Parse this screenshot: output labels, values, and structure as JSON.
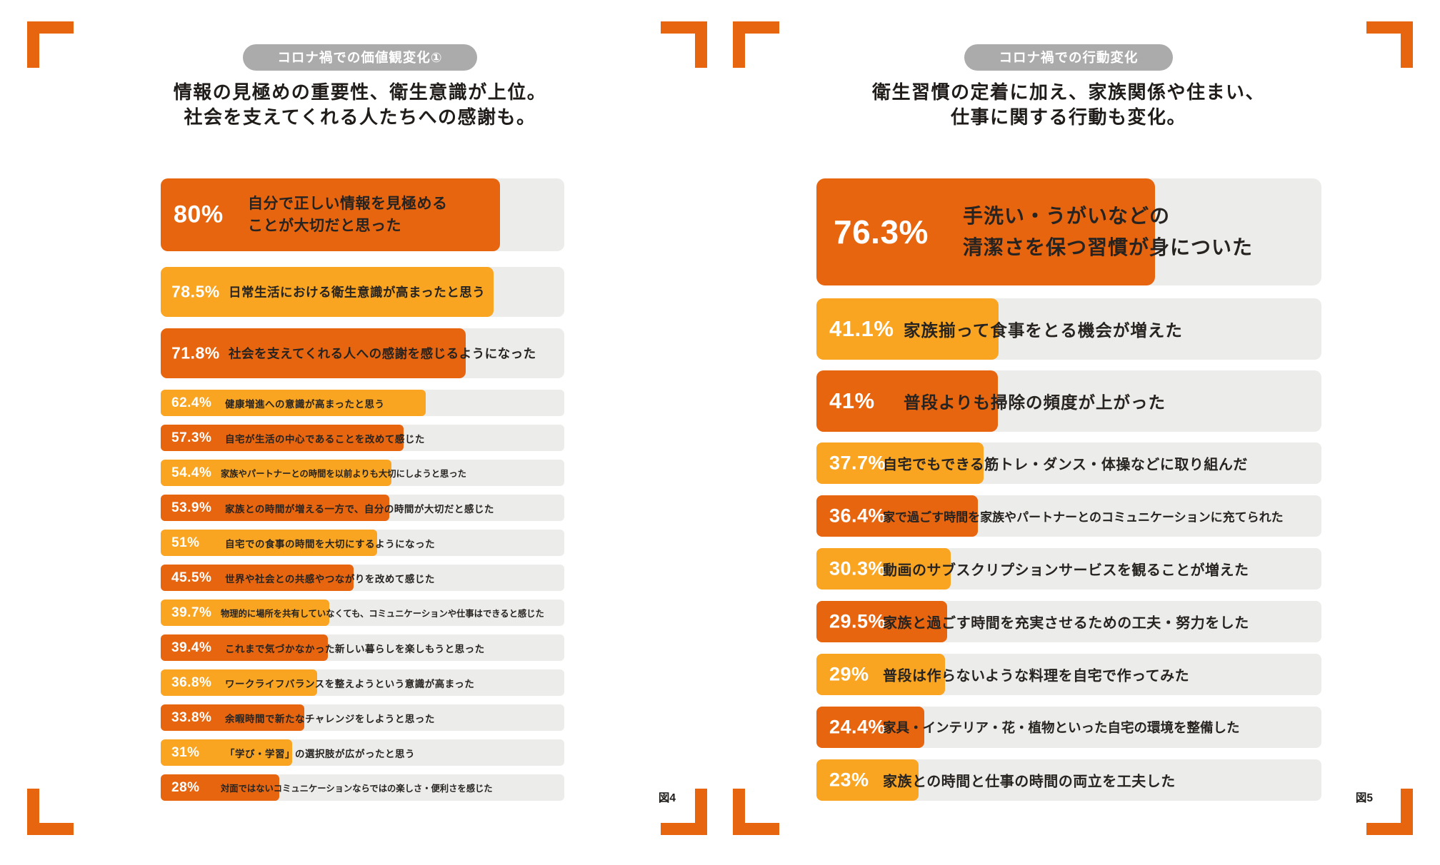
{
  "colors": {
    "dark_orange": "#E7650F",
    "amber": "#F9A522",
    "track_gray": "#ECECEA",
    "badge_gray": "#ABABAB",
    "text_dark": "#1F1C1A",
    "percent_text": "#FFFFFF"
  },
  "chart_data": [
    {
      "type": "bar",
      "orientation": "horizontal",
      "badge": "コロナ禍での価値観変化①",
      "title_lines": [
        "情報の見極めの重要性、衛生意識が上位。",
        "社会を支えてくれる人たちへの感謝も。"
      ],
      "figure_label": "図4",
      "unit": "%",
      "xlim": [
        0,
        100
      ],
      "grid": false,
      "legend": "none",
      "categories": [
        "自分で正しい情報を見極めることが大切だと思った",
        "日常生活における衛生意識が高まったと思う",
        "社会を支えてくれる人への感謝を感じるようになった",
        "健康増進への意識が高まったと思う",
        "自宅が生活の中心であることを改めて感じた",
        "家族やパートナーとの時間を以前よりも大切にしようと思った",
        "家族との時間が増える一方で、自分の時間が大切だと感じた",
        "自宅での食事の時間を大切にするようになった",
        "世界や社会との共感やつながりを改めて感じた",
        "物理的に場所を共有していなくても、コミュニケーションや仕事はできると感じた",
        "これまで気づかなかった新しい暮らしを楽しもうと思った",
        "ワークライフバランスを整えようという意識が高まった",
        "余暇時間で新たなチャレンジをしようと思った",
        "「学び・学習」の選択肢が広がったと思う",
        "対面ではないコミュニケーションならではの楽しさ・便利さを感じた"
      ],
      "values": [
        80,
        78.5,
        71.8,
        62.4,
        57.3,
        54.4,
        53.9,
        51,
        45.5,
        39.7,
        39.4,
        36.8,
        33.8,
        31,
        28
      ],
      "bars": [
        {
          "value": 80,
          "value_label": "80%",
          "label": "自分で正しい情報を見極める\nことが大切だと思った",
          "width": "84%",
          "color": "#E7650F"
        },
        {
          "value": 78.5,
          "value_label": "78.5%",
          "label": "日常生活における衛生意識が高まったと思う",
          "width": "82.5%",
          "color": "#F9A522"
        },
        {
          "value": 71.8,
          "value_label": "71.8%",
          "label": "社会を支えてくれる人への感謝を感じるようになった",
          "width": "75.5%",
          "color": "#E7650F"
        },
        {
          "value": 62.4,
          "value_label": "62.4%",
          "label": "健康増進への意識が高まったと思う",
          "width": "65.6%",
          "color": "#F9A522"
        },
        {
          "value": 57.3,
          "value_label": "57.3%",
          "label": "自宅が生活の中心であることを改めて感じた",
          "width": "60.2%",
          "color": "#E7650F"
        },
        {
          "value": 54.4,
          "value_label": "54.4%",
          "label": "家族やパートナーとの時間を以前よりも大切にしようと思った",
          "width": "57.2%",
          "color": "#F9A522"
        },
        {
          "value": 53.9,
          "value_label": "53.9%",
          "label": "家族との時間が増える一方で、自分の時間が大切だと感じた",
          "width": "56.6%",
          "color": "#E7650F"
        },
        {
          "value": 51,
          "value_label": "51%",
          "label": "自宅での食事の時間を大切にするようになった",
          "width": "53.6%",
          "color": "#F9A522"
        },
        {
          "value": 45.5,
          "value_label": "45.5%",
          "label": "世界や社会との共感やつながりを改めて感じた",
          "width": "47.8%",
          "color": "#E7650F"
        },
        {
          "value": 39.7,
          "value_label": "39.7%",
          "label": "物理的に場所を共有していなくても、コミュニケーションや仕事はできると感じた",
          "width": "41.7%",
          "color": "#F9A522"
        },
        {
          "value": 39.4,
          "value_label": "39.4%",
          "label": "これまで気づかなかった新しい暮らしを楽しもうと思った",
          "width": "41.4%",
          "color": "#E7650F"
        },
        {
          "value": 36.8,
          "value_label": "36.8%",
          "label": "ワークライフバランスを整えようという意識が高まった",
          "width": "38.7%",
          "color": "#F9A522"
        },
        {
          "value": 33.8,
          "value_label": "33.8%",
          "label": "余暇時間で新たなチャレンジをしようと思った",
          "width": "35.5%",
          "color": "#E7650F"
        },
        {
          "value": 31,
          "value_label": "31%",
          "label": "「学び・学習」の選択肢が広がったと思う",
          "width": "32.6%",
          "color": "#F9A522"
        },
        {
          "value": 28,
          "value_label": "28%",
          "label": "対面ではないコミュニケーションならではの楽しさ・便利さを感じた",
          "width": "29.4%",
          "color": "#E7650F"
        }
      ]
    },
    {
      "type": "bar",
      "orientation": "horizontal",
      "badge": "コロナ禍での行動変化",
      "title_lines": [
        "衛生習慣の定着に加え、家族関係や住まい、",
        "仕事に関する行動も変化。"
      ],
      "figure_label": "図5",
      "unit": "%",
      "xlim": [
        0,
        100
      ],
      "grid": false,
      "legend": "none",
      "categories": [
        "手洗い・うがいなどの清潔さを保つ習慣が身についた",
        "家族揃って食事をとる機会が増えた",
        "普段よりも掃除の頻度が上がった",
        "自宅でもできる筋トレ・ダンス・体操などに取り組んだ",
        "家で過ごす時間を家族やパートナーとのコミュニケーションに充てられた",
        "動画のサブスクリプションサービスを観ることが増えた",
        "家族と過ごす時間を充実させるための工夫・努力をした",
        "普段は作らないような料理を自宅で作ってみた",
        "家具・インテリア・花・植物といった自宅の環境を整備した",
        "家族との時間と仕事の時間の両立を工夫した"
      ],
      "values": [
        76.3,
        41.1,
        41,
        37.7,
        36.4,
        30.3,
        29.5,
        29,
        24.4,
        23
      ],
      "bars": [
        {
          "value": 76.3,
          "value_label": "76.3%",
          "label": "手洗い・うがいなどの\n清潔さを保つ習慣が身についた",
          "width": "67%",
          "color": "#E7650F"
        },
        {
          "value": 41.1,
          "value_label": "41.1%",
          "label": "家族揃って食事をとる機会が増えた",
          "width": "36%",
          "color": "#F9A522"
        },
        {
          "value": 41,
          "value_label": "41%",
          "label": "普段よりも掃除の頻度が上がった",
          "width": "35.9%",
          "color": "#E7650F"
        },
        {
          "value": 37.7,
          "value_label": "37.7%",
          "label": "自宅でもできる筋トレ・ダンス・体操などに取り組んだ",
          "width": "33.1%",
          "color": "#F9A522"
        },
        {
          "value": 36.4,
          "value_label": "36.4%",
          "label": "家で過ごす時間を家族やパートナーとのコミュニケーションに充てられた",
          "width": "31.9%",
          "color": "#E7650F"
        },
        {
          "value": 30.3,
          "value_label": "30.3%",
          "label": "動画のサブスクリプションサービスを観ることが増えた",
          "width": "26.6%",
          "color": "#F9A522"
        },
        {
          "value": 29.5,
          "value_label": "29.5%",
          "label": "家族と過ごす時間を充実させるための工夫・努力をした",
          "width": "25.9%",
          "color": "#E7650F"
        },
        {
          "value": 29,
          "value_label": "29%",
          "label": "普段は作らないような料理を自宅で作ってみた",
          "width": "25.4%",
          "color": "#F9A522"
        },
        {
          "value": 24.4,
          "value_label": "24.4%",
          "label": "家具・インテリア・花・植物といった自宅の環境を整備した",
          "width": "21.4%",
          "color": "#E7650F"
        },
        {
          "value": 23,
          "value_label": "23%",
          "label": "家族との時間と仕事の時間の両立を工夫した",
          "width": "20.2%",
          "color": "#F9A522"
        }
      ]
    }
  ]
}
